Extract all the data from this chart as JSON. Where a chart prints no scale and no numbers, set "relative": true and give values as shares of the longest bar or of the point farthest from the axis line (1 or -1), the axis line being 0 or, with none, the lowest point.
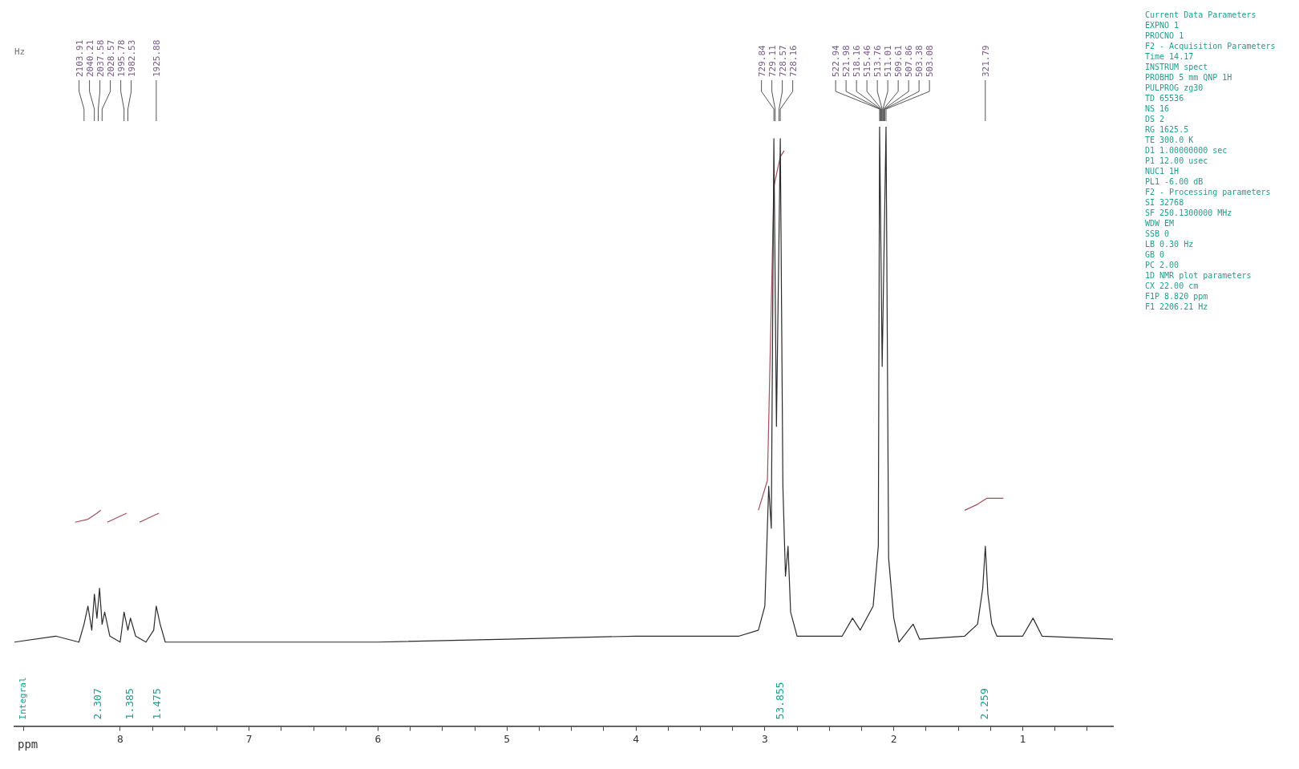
{
  "chart_data": {
    "type": "line",
    "xlabel": "ppm",
    "relative": true,
    "tick_labels": "x",
    "grid": false,
    "legend": false,
    "marker": "none",
    "line_style": "solid",
    "xlim": [
      8.82,
      0.3
    ],
    "xticks": [
      {
        "value": 8.75,
        "label": null
      },
      8,
      {
        "value": 7.75,
        "label": null
      },
      {
        "value": 7.5,
        "label": null
      },
      {
        "value": 7.25,
        "label": null
      },
      7,
      {
        "value": 6.75,
        "label": null
      },
      {
        "value": 6.5,
        "label": null
      },
      {
        "value": 6.25,
        "label": null
      },
      6,
      {
        "value": 5.75,
        "label": null
      },
      {
        "value": 5.5,
        "label": null
      },
      {
        "value": 5.25,
        "label": null
      },
      5,
      {
        "value": 4.75,
        "label": null
      },
      {
        "value": 4.5,
        "label": null
      },
      {
        "value": 4.25,
        "label": null
      },
      4,
      {
        "value": 3.75,
        "label": null
      },
      {
        "value": 3.5,
        "label": null
      },
      {
        "value": 3.25,
        "label": null
      },
      3,
      {
        "value": 2.75,
        "label": null
      },
      {
        "value": 2.5,
        "label": null
      },
      {
        "value": 2.25,
        "label": null
      },
      2,
      {
        "value": 1.75,
        "label": null
      },
      {
        "value": 1.5,
        "label": null
      },
      {
        "value": 1.25,
        "label": null
      },
      1,
      {
        "value": 0.75,
        "label": null
      },
      {
        "value": 0.5,
        "label": null
      }
    ],
    "series": [
      {
        "type": "line",
        "color": "#2b2b2b",
        "x": [
          8.82,
          8.5,
          8.32,
          8.28,
          8.25,
          8.22,
          8.2,
          8.18,
          8.16,
          8.14,
          8.12,
          8.08,
          8.0,
          7.97,
          7.94,
          7.92,
          7.88,
          7.8,
          7.74,
          7.72,
          7.69,
          7.65,
          7.0,
          6.0,
          5.0,
          4.0,
          3.2,
          3.05,
          3.0,
          2.97,
          2.95,
          2.93,
          2.91,
          2.88,
          2.86,
          2.84,
          2.82,
          2.8,
          2.75,
          2.4,
          2.32,
          2.26,
          2.16,
          2.12,
          2.11,
          2.09,
          2.06,
          2.04,
          2.0,
          1.96,
          1.85,
          1.8,
          1.45,
          1.35,
          1.31,
          1.29,
          1.27,
          1.24,
          1.2,
          1.0,
          0.92,
          0.85,
          0.3
        ],
        "values": [
          0.14,
          0.15,
          0.14,
          0.17,
          0.2,
          0.16,
          0.22,
          0.18,
          0.23,
          0.17,
          0.19,
          0.15,
          0.14,
          0.19,
          0.16,
          0.18,
          0.15,
          0.14,
          0.16,
          0.2,
          0.17,
          0.14,
          0.14,
          0.14,
          0.145,
          0.15,
          0.15,
          0.16,
          0.2,
          0.4,
          0.33,
          0.98,
          0.5,
          0.98,
          0.4,
          0.25,
          0.3,
          0.19,
          0.15,
          0.15,
          0.18,
          0.16,
          0.2,
          0.3,
          1.0,
          0.6,
          1.0,
          0.28,
          0.18,
          0.14,
          0.17,
          0.145,
          0.15,
          0.17,
          0.23,
          0.3,
          0.22,
          0.17,
          0.15,
          0.15,
          0.18,
          0.15,
          0.145
        ]
      },
      {
        "type": "line",
        "color": "#a0505a",
        "x": [
          8.35,
          8.25,
          8.18,
          8.15,
          8.12,
          8.1,
          8.0,
          7.95,
          7.9,
          7.85,
          7.75,
          7.7,
          3.2,
          3.05,
          2.98,
          2.93,
          2.88,
          2.85,
          2.0,
          1.45,
          1.35,
          1.28,
          1.15
        ],
        "values": [
          0.34,
          0.345,
          0.355,
          0.36,
          null,
          0.34,
          0.35,
          0.355,
          null,
          0.34,
          0.35,
          0.355,
          null,
          0.36,
          0.41,
          0.9,
          0.95,
          0.96,
          null,
          0.36,
          0.37,
          0.38,
          0.38
        ]
      }
    ],
    "annotations": [
      "Hz",
      "Integral",
      "2103.91",
      "2040.21",
      "2037.58",
      "2028.57",
      "1995.78",
      "1982.53",
      "1925.88",
      "729.84",
      "729.11",
      "728.57",
      "728.16",
      "522.94",
      "521.98",
      "518.16",
      "515.46",
      "513.76",
      "511.01",
      "509.61",
      "507.86",
      "503.38",
      "503.08",
      "321.79",
      "2.307",
      "1.385",
      "1.475",
      "53.855",
      "2.259",
      "Current Data Parameters",
      "EXPNO 1",
      "PROCNO 1",
      "F2 - Acquisition Parameters",
      "Time 14.17",
      "INSTRUM spect",
      "PROBHD 5 mm QNP 1H",
      "PULPROG zg30",
      "TD 65536",
      "NS 16",
      "DS 2",
      "RG 1625.5",
      "TE 300.0 K",
      "D1 1.00000000 sec",
      "P1 12.00 usec",
      "NUC1 1H",
      "PL1 -6.00 dB",
      "F2 - Processing parameters",
      "SI 32768",
      "SF 250.1300000 MHz",
      "WDW EM",
      "SSB 0",
      "LB 0.30 Hz",
      "GB 0",
      "PC 2.00",
      "1D NMR plot parameters",
      "CX 22.00 cm",
      "F1P 8.820 ppm",
      "F1 2206.21 Hz"
    ]
  }
}
